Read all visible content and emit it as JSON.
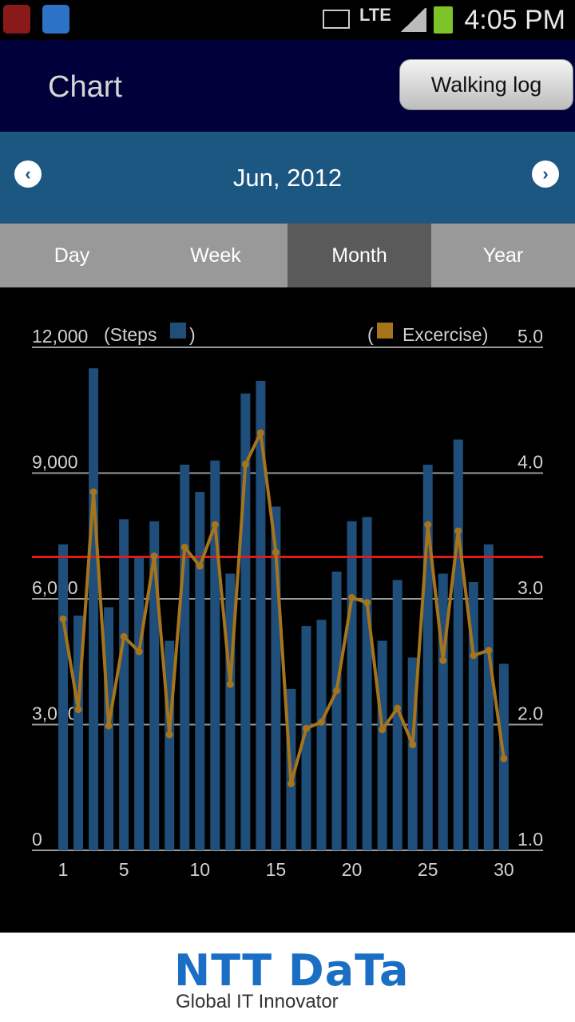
{
  "status_bar": {
    "time": "4:05 PM",
    "network": "LTE"
  },
  "header": {
    "title": "Chart",
    "walking_log_button": "Walking log"
  },
  "month_nav": {
    "label": "Jun, 2012"
  },
  "tabs": [
    {
      "label": "Day",
      "active": false
    },
    {
      "label": "Week",
      "active": false
    },
    {
      "label": "Month",
      "active": true
    },
    {
      "label": "Year",
      "active": false
    }
  ],
  "chart_data": {
    "type": "bar",
    "x": [
      1,
      2,
      3,
      4,
      5,
      6,
      7,
      8,
      9,
      10,
      11,
      12,
      13,
      14,
      15,
      16,
      17,
      18,
      19,
      20,
      21,
      22,
      23,
      24,
      25,
      26,
      27,
      28,
      29,
      30
    ],
    "x_ticks": [
      1,
      5,
      10,
      15,
      20,
      25,
      30
    ],
    "left_axis": {
      "label": "(Steps",
      "label_close": ")",
      "ticks": [
        "12,000",
        "9,000",
        "6,000",
        "3,000",
        "0"
      ],
      "range": [
        0,
        12000
      ]
    },
    "right_axis": {
      "label": "(",
      "label_series": "Excercise)",
      "ticks": [
        "5.0",
        "4.0",
        "3.0",
        "2.0",
        "1.0"
      ],
      "range": [
        1.0,
        5.0
      ]
    },
    "series": [
      {
        "type": "bar",
        "color": "#1f4e7a",
        "values": [
          7300,
          5600,
          11500,
          5800,
          7900,
          7000,
          7850,
          5000,
          9200,
          8550,
          9300,
          6600,
          10900,
          11200,
          8200,
          3850,
          5350,
          5500,
          6650,
          7850,
          7950,
          5000,
          6450,
          4600,
          9200,
          6600,
          9800,
          6400,
          7300,
          4450
        ]
      },
      {
        "type": "line",
        "color": "#a6741c",
        "values": [
          2.84,
          2.12,
          3.85,
          1.99,
          2.7,
          2.58,
          3.34,
          1.92,
          3.41,
          3.26,
          3.59,
          2.32,
          4.07,
          4.32,
          3.37,
          1.53,
          1.97,
          2.02,
          2.27,
          3.01,
          2.97,
          1.96,
          2.13,
          1.84,
          3.59,
          2.51,
          3.54,
          2.55,
          2.59,
          1.73
        ]
      }
    ],
    "target_line": {
      "value": 7000,
      "color": "#e01b1b"
    },
    "grid": true
  },
  "footer": {
    "brand": "NTT DaTa",
    "tagline": "Global IT Innovator"
  }
}
